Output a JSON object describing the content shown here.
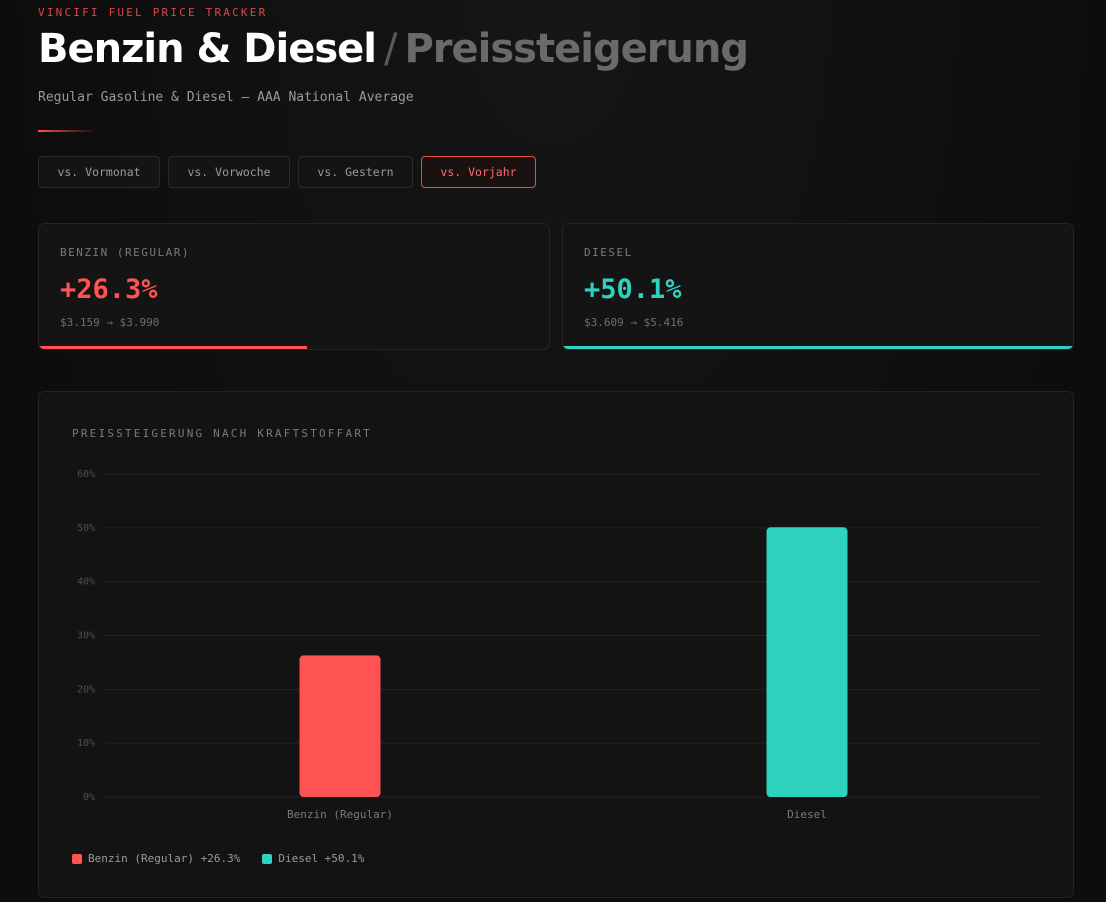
{
  "header": {
    "eyebrow": "VINCIFI FUEL PRICE TRACKER",
    "title_main": "Benzin & Diesel",
    "title_sep": "/",
    "title_sub": "Preissteigerung",
    "subtitle": "Regular Gasoline & Diesel — AAA National Average"
  },
  "tabs": [
    {
      "label": "vs. Vormonat",
      "active": false
    },
    {
      "label": "vs. Vorwoche",
      "active": false
    },
    {
      "label": "vs. Gestern",
      "active": false
    },
    {
      "label": "vs. Vorjahr",
      "active": true
    }
  ],
  "cards": {
    "benzin": {
      "label": "BENZIN (REGULAR)",
      "value": "+26.3%",
      "range": "$3.159 → $3.990",
      "color": "#ff5252",
      "progress": 0.526
    },
    "diesel": {
      "label": "DIESEL",
      "value": "+50.1%",
      "range": "$3.609 → $5.416",
      "color": "#2ed3bf",
      "progress": 1.0
    }
  },
  "chart": {
    "title": "PREISSTEIGERUNG NACH KRAFTSTOFFART",
    "legend": [
      {
        "label": "Benzin (Regular) +26.3%",
        "color": "#ff5252"
      },
      {
        "label": "Diesel +50.1%",
        "color": "#2ed3bf"
      }
    ]
  },
  "chart_data": {
    "type": "bar",
    "title": "PREISSTEIGERUNG NACH KRAFTSTOFFART",
    "categories": [
      "Benzin (Regular)",
      "Diesel"
    ],
    "values": [
      26.3,
      50.1
    ],
    "colors": [
      "#ff5252",
      "#2ed3bf"
    ],
    "yticks": [
      "0%",
      "10%",
      "20%",
      "30%",
      "40%",
      "50%",
      "60%"
    ],
    "ylim": [
      0,
      60
    ],
    "xlabel": "",
    "ylabel": "",
    "grid": true
  }
}
